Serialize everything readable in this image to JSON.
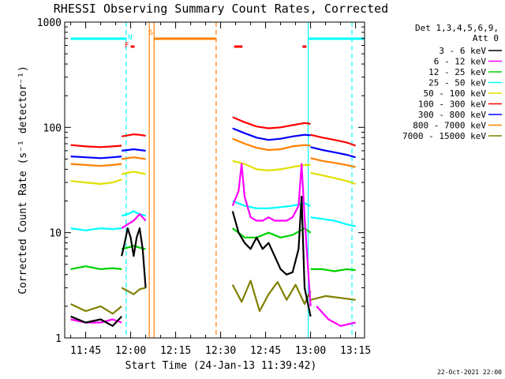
{
  "chart_data": {
    "type": "line",
    "title": "RHESSI Observing Summary Count Rates, Corrected",
    "xlabel": "Start Time (24-Jan-13 11:39:42)",
    "ylabel": "Corrected Count Rate (s⁻¹ detector⁻¹)",
    "x_range_minutes": [
      -2,
      98
    ],
    "ylim": [
      1,
      1000
    ],
    "y_scale": "log",
    "x_tick_labels": [
      {
        "t": 5,
        "label": "11:45"
      },
      {
        "t": 20,
        "label": "12:00"
      },
      {
        "t": 35,
        "label": "12:15"
      },
      {
        "t": 50,
        "label": "12:30"
      },
      {
        "t": 65,
        "label": "12:45"
      },
      {
        "t": 80,
        "label": "13:00"
      },
      {
        "t": 95,
        "label": "13:15"
      }
    ],
    "y_tick_labels": [
      {
        "v": 1,
        "label": "1"
      },
      {
        "v": 10,
        "label": "10"
      },
      {
        "v": 100,
        "label": "100"
      },
      {
        "v": 1000,
        "label": "1000"
      }
    ],
    "legend_header": [
      "Det 1,3,4,5,6,9,",
      "Att 0"
    ],
    "series": [
      {
        "name": "3 - 6 keV",
        "color": "#000000",
        "segments": [
          {
            "t": [
              0,
              5,
              10,
              14,
              17
            ],
            "v": [
              1.6,
              1.4,
              1.5,
              1.3,
              1.6
            ]
          },
          {
            "t": [
              17,
              18,
              19,
              20,
              21,
              22,
              23,
              24,
              25
            ],
            "v": [
              6,
              8,
              11,
              9,
              6,
              9,
              11,
              7,
              3
            ]
          },
          {
            "t": [
              54,
              56,
              58,
              60,
              62,
              64,
              66,
              68,
              70,
              72,
              74,
              76,
              77,
              78,
              80
            ],
            "v": [
              16,
              10,
              8,
              7,
              9,
              7,
              8,
              6,
              4.5,
              4,
              4.2,
              7,
              22,
              3,
              1.6
            ]
          }
        ]
      },
      {
        "name": "6 - 12 keV",
        "color": "#ff00ff",
        "segments": [
          {
            "t": [
              0,
              5,
              10,
              14,
              17
            ],
            "v": [
              1.5,
              1.4,
              1.4,
              1.5,
              1.4
            ]
          },
          {
            "t": [
              17,
              19,
              21,
              23,
              25
            ],
            "v": [
              11,
              12,
              13,
              15,
              13
            ]
          },
          {
            "t": [
              54,
              56,
              57,
              58,
              60,
              62,
              64,
              66,
              68,
              70,
              72,
              74,
              76,
              77,
              78,
              80
            ],
            "v": [
              18,
              25,
              45,
              22,
              14,
              13,
              13,
              14,
              13,
              13,
              13,
              14,
              18,
              45,
              14,
              2
            ]
          },
          {
            "t": [
              82,
              86,
              90,
              95
            ],
            "v": [
              2,
              1.5,
              1.3,
              1.4
            ]
          }
        ]
      },
      {
        "name": "12 - 25 keV",
        "color": "#00d000",
        "segments": [
          {
            "t": [
              0,
              5,
              10,
              14,
              17
            ],
            "v": [
              4.5,
              4.8,
              4.5,
              4.6,
              4.5
            ]
          },
          {
            "t": [
              17,
              19,
              21,
              23,
              25
            ],
            "v": [
              7,
              7.2,
              7.5,
              7.2,
              7
            ]
          },
          {
            "t": [
              54,
              58,
              62,
              66,
              70,
              74,
              78,
              80
            ],
            "v": [
              11,
              9,
              9,
              10,
              9,
              9.5,
              11,
              10
            ]
          },
          {
            "t": [
              80,
              84,
              88,
              92,
              95
            ],
            "v": [
              4.5,
              4.5,
              4.3,
              4.5,
              4.4
            ]
          }
        ]
      },
      {
        "name": "25 - 50 keV",
        "color": "#00ffff",
        "segments": [
          {
            "t": [
              0,
              5,
              10,
              14,
              17
            ],
            "v": [
              11,
              10.5,
              11,
              10.8,
              11
            ]
          },
          {
            "t": [
              17,
              19,
              21,
              23,
              25
            ],
            "v": [
              14.5,
              15,
              16,
              15,
              14.5
            ]
          },
          {
            "t": [
              54,
              58,
              62,
              66,
              70,
              74,
              78,
              80
            ],
            "v": [
              20,
              18,
              17,
              17,
              17.5,
              18,
              19,
              18
            ]
          },
          {
            "t": [
              80,
              84,
              88,
              92,
              95
            ],
            "v": [
              14,
              13.5,
              13,
              12,
              11.5
            ]
          }
        ]
      },
      {
        "name": "50 - 100 keV",
        "color": "#e0e000",
        "segments": [
          {
            "t": [
              0,
              5,
              10,
              14,
              17
            ],
            "v": [
              31,
              30,
              29,
              30,
              32
            ]
          },
          {
            "t": [
              17,
              19,
              21,
              23,
              25
            ],
            "v": [
              36,
              37,
              38,
              37,
              36
            ]
          },
          {
            "t": [
              54,
              58,
              62,
              66,
              70,
              74,
              78,
              80
            ],
            "v": [
              48,
              45,
              40,
              39,
              40,
              42,
              44,
              44
            ]
          },
          {
            "t": [
              80,
              84,
              88,
              92,
              95
            ],
            "v": [
              37,
              35,
              33,
              31,
              29
            ]
          }
        ]
      },
      {
        "name": "100 - 300 keV",
        "color": "#ff0000",
        "segments": [
          {
            "t": [
              0,
              5,
              10,
              14,
              17
            ],
            "v": [
              68,
              66,
              65,
              66,
              67
            ]
          },
          {
            "t": [
              17,
              19,
              21,
              23,
              25
            ],
            "v": [
              82,
              84,
              86,
              85,
              83
            ]
          },
          {
            "t": [
              54,
              58,
              62,
              66,
              70,
              74,
              78,
              80
            ],
            "v": [
              125,
              112,
              102,
              98,
              100,
              105,
              110,
              108
            ]
          },
          {
            "t": [
              80,
              84,
              88,
              92,
              95
            ],
            "v": [
              85,
              80,
              76,
              72,
              67
            ]
          }
        ]
      },
      {
        "name": "300 - 800 keV",
        "color": "#0000ff",
        "segments": [
          {
            "t": [
              0,
              5,
              10,
              14,
              17
            ],
            "v": [
              53,
              52,
              51,
              52,
              53
            ]
          },
          {
            "t": [
              17,
              19,
              21,
              23,
              25
            ],
            "v": [
              60,
              61,
              62,
              61,
              60
            ]
          },
          {
            "t": [
              54,
              58,
              62,
              66,
              70,
              74,
              78,
              80
            ],
            "v": [
              98,
              88,
              80,
              76,
              78,
              82,
              85,
              84
            ]
          },
          {
            "t": [
              80,
              84,
              88,
              92,
              95
            ],
            "v": [
              65,
              61,
              58,
              55,
              52
            ]
          }
        ]
      },
      {
        "name": "800 - 7000 keV",
        "color": "#ff8000",
        "segments": [
          {
            "t": [
              0,
              5,
              10,
              14,
              17
            ],
            "v": [
              45,
              44,
              43,
              44,
              45
            ]
          },
          {
            "t": [
              17,
              19,
              21,
              23,
              25
            ],
            "v": [
              50,
              51,
              52,
              51,
              50
            ]
          },
          {
            "t": [
              54,
              58,
              62,
              66,
              70,
              74,
              78,
              80
            ],
            "v": [
              78,
              70,
              64,
              61,
              62,
              66,
              68,
              67
            ]
          },
          {
            "t": [
              80,
              84,
              88,
              92,
              95
            ],
            "v": [
              51,
              48,
              46,
              44,
              42
            ]
          }
        ]
      },
      {
        "name": "7000 - 15000 keV",
        "color": "#808000",
        "segments": [
          {
            "t": [
              0,
              5,
              10,
              14,
              17
            ],
            "v": [
              2.1,
              1.8,
              2,
              1.7,
              2
            ]
          },
          {
            "t": [
              17,
              19,
              21,
              23,
              25
            ],
            "v": [
              3,
              2.8,
              2.6,
              2.9,
              3
            ]
          },
          {
            "t": [
              54,
              57,
              60,
              63,
              66,
              69,
              72,
              75,
              78,
              80
            ],
            "v": [
              3.2,
              2.2,
              3.5,
              1.8,
              2.6,
              3.4,
              2.3,
              3.2,
              2.1,
              2.8
            ]
          },
          {
            "t": [
              80,
              85,
              90,
              95
            ],
            "v": [
              2.3,
              2.5,
              2.4,
              2.3
            ]
          }
        ]
      }
    ],
    "vertical_lines": [
      {
        "t": 18.5,
        "color": "#00ffff",
        "style": "dashed"
      },
      {
        "t": 26.2,
        "color": "#ff8000",
        "style": "solid"
      },
      {
        "t": 27.8,
        "color": "#ff8000",
        "style": "solid"
      },
      {
        "t": 48.5,
        "color": "#ff8000",
        "style": "dashed"
      },
      {
        "t": 79.2,
        "color": "#00ffff",
        "style": "solid"
      },
      {
        "t": 93.8,
        "color": "#00ffff",
        "style": "dashed"
      }
    ],
    "state_bars": [
      {
        "t0": 0,
        "t1": 18.5,
        "color": "#00ffff"
      },
      {
        "t0": 79.2,
        "t1": 98,
        "color": "#00ffff"
      },
      {
        "t0": 27.8,
        "t1": 48.5,
        "color": "#ff8000"
      }
    ],
    "flag_marks": [
      {
        "t0": 20.0,
        "t1": 21.3,
        "color": "#ff0000"
      },
      {
        "t0": 54.5,
        "t1": 57.3,
        "color": "#ff0000"
      },
      {
        "t0": 77.3,
        "t1": 78.6,
        "color": "#ff0000"
      }
    ],
    "flag_letters": [
      {
        "t": 19.8,
        "text": "N",
        "color": "#00ffff"
      },
      {
        "t": 18.7,
        "text": "F",
        "color": "#ff0000"
      },
      {
        "t": 26.8,
        "text": "S",
        "color": "#ff8000"
      }
    ]
  },
  "footer": {
    "date": "22-Oct-2021 22:00"
  }
}
